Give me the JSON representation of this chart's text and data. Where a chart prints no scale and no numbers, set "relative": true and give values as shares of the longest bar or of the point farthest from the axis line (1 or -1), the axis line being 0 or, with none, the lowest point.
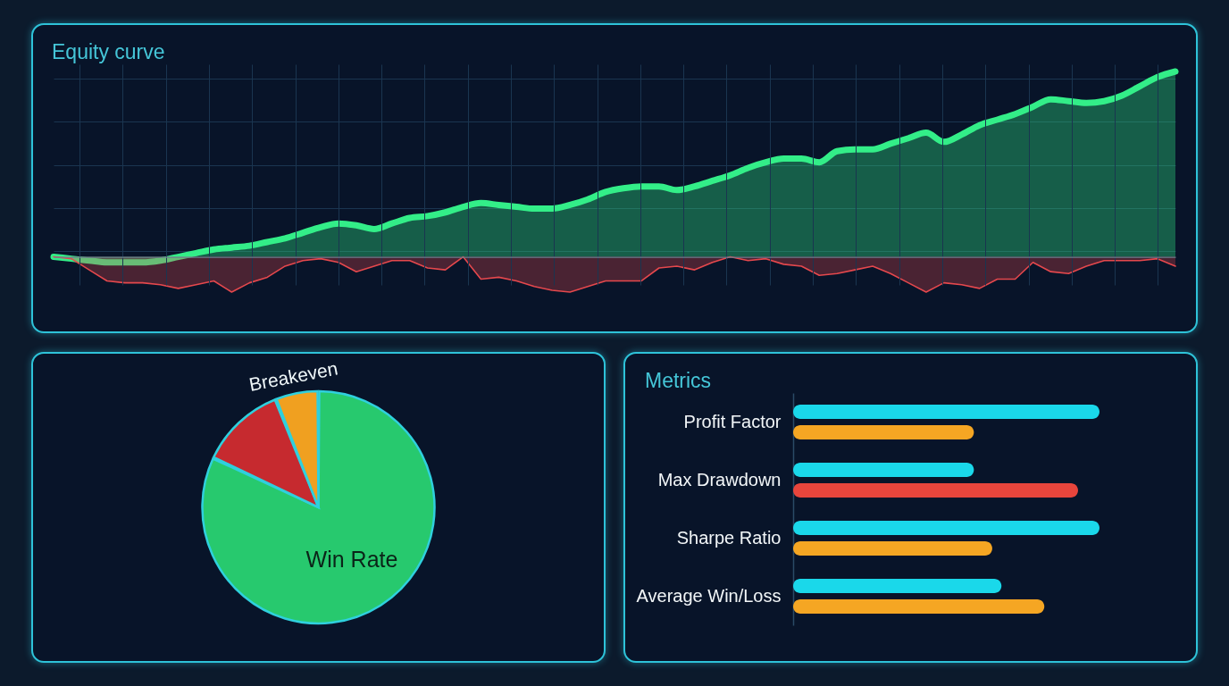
{
  "chart_data": [
    {
      "type": "area",
      "title": "Equity curve",
      "relative": true,
      "grid": true,
      "categories": [
        null,
        null,
        null,
        null,
        null,
        null,
        null,
        null,
        null,
        null,
        null,
        null,
        null,
        null,
        null,
        null,
        null,
        null,
        null,
        null,
        null,
        null,
        null,
        null,
        null,
        null,
        null,
        null,
        null,
        null,
        null,
        null,
        null,
        null,
        null,
        null,
        null,
        null,
        null,
        null,
        null,
        null,
        null,
        null,
        null,
        null,
        null,
        null,
        null,
        null,
        null,
        null,
        null,
        null,
        null,
        null,
        null,
        null,
        null,
        null,
        null,
        null,
        null,
        null
      ],
      "series": [
        {
          "type": "area",
          "color": "#33ee88",
          "values": [
            0,
            -0.01,
            -0.02,
            -0.03,
            -0.03,
            -0.03,
            -0.02,
            0,
            0.02,
            0.04,
            0.05,
            0.06,
            0.08,
            0.1,
            0.13,
            0.16,
            0.18,
            0.17,
            0.15,
            0.18,
            0.21,
            0.22,
            0.24,
            0.27,
            0.29,
            0.28,
            0.27,
            0.26,
            0.26,
            0.28,
            0.31,
            0.35,
            0.37,
            0.38,
            0.38,
            0.36,
            0.38,
            0.41,
            0.44,
            0.48,
            0.51,
            0.53,
            0.53,
            0.51,
            0.57,
            0.58,
            0.58,
            0.61,
            0.64,
            0.67,
            0.62,
            0.66,
            0.71,
            0.74,
            0.77,
            0.81,
            0.85,
            0.84,
            0.83,
            0.84,
            0.87,
            0.92,
            0.97,
            1
          ]
        },
        {
          "type": "area",
          "color": "#e5484d",
          "values": [
            0,
            -0.01,
            -0.07,
            -0.13,
            -0.14,
            -0.14,
            -0.15,
            -0.17,
            -0.15,
            -0.13,
            -0.19,
            -0.14,
            -0.11,
            -0.05,
            -0.02,
            -0.01,
            -0.03,
            -0.08,
            -0.05,
            -0.02,
            -0.02,
            -0.06,
            -0.07,
            0,
            -0.12,
            -0.11,
            -0.13,
            -0.16,
            -0.18,
            -0.19,
            -0.16,
            -0.13,
            -0.13,
            -0.13,
            -0.06,
            -0.05,
            -0.07,
            -0.03,
            0,
            -0.02,
            -0.01,
            -0.04,
            -0.05,
            -0.1,
            -0.09,
            -0.07,
            -0.05,
            -0.09,
            -0.14,
            -0.19,
            -0.14,
            -0.15,
            -0.17,
            -0.12,
            -0.12,
            -0.03,
            -0.08,
            -0.09,
            -0.05,
            -0.02,
            -0.02,
            -0.02,
            -0.01,
            -0.05
          ]
        }
      ]
    },
    {
      "type": "pie",
      "categories": [
        "Win Rate",
        null,
        "Breakeven"
      ],
      "values": [
        82,
        12,
        6
      ],
      "colors": [
        "#27c96e",
        "#c62a2f",
        "#f0a020"
      ]
    },
    {
      "type": "bar",
      "title": "Metrics",
      "orientation": "horizontal",
      "relative": true,
      "categories": [
        "Profit Factor",
        "Max Drawdown",
        "Sharpe Ratio",
        "Average Win/Loss"
      ],
      "series": [
        {
          "color": "#1ad8ea",
          "values": [
            1,
            0.59,
            1,
            0.68
          ]
        },
        {
          "colors": [
            "#f5a623",
            "#e8453c",
            "#f5a623",
            "#f5a623"
          ],
          "values": [
            0.59,
            0.93,
            0.65,
            0.82
          ]
        }
      ]
    }
  ]
}
